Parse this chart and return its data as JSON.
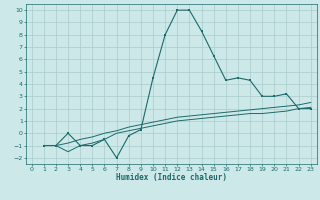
{
  "xlabel": "Humidex (Indice chaleur)",
  "xlim": [
    -0.5,
    23.5
  ],
  "ylim": [
    -2.5,
    10.5
  ],
  "bg_color": "#cce8e8",
  "grid_color": "#aacccc",
  "line_color": "#1a6b6b",
  "curve1_x": [
    1,
    2,
    3,
    4,
    5,
    6,
    7,
    8,
    9,
    10,
    11,
    12,
    13,
    14,
    15,
    16,
    17,
    18,
    19,
    20,
    21,
    22,
    23
  ],
  "curve1_y": [
    -1,
    -1,
    0,
    -1,
    -1,
    -0.5,
    -2,
    -0.2,
    0.3,
    4.5,
    8.0,
    10.0,
    10.0,
    8.3,
    6.3,
    4.3,
    4.5,
    4.3,
    3.0,
    3.0,
    3.2,
    2.0,
    2.0
  ],
  "curve2_x": [
    1,
    2,
    3,
    4,
    5,
    6,
    7,
    8,
    9,
    10,
    11,
    12,
    13,
    14,
    15,
    16,
    17,
    18,
    19,
    20,
    21,
    22,
    23
  ],
  "curve2_y": [
    -1,
    -1,
    -1.5,
    -1.0,
    -0.8,
    -0.5,
    0.0,
    0.2,
    0.4,
    0.6,
    0.8,
    1.0,
    1.1,
    1.2,
    1.3,
    1.4,
    1.5,
    1.6,
    1.6,
    1.7,
    1.8,
    2.0,
    2.1
  ],
  "curve3_x": [
    1,
    2,
    3,
    4,
    5,
    6,
    7,
    8,
    9,
    10,
    11,
    12,
    13,
    14,
    15,
    16,
    17,
    18,
    19,
    20,
    21,
    22,
    23
  ],
  "curve3_y": [
    -1,
    -1,
    -0.8,
    -0.5,
    -0.3,
    0.0,
    0.2,
    0.5,
    0.7,
    0.9,
    1.1,
    1.3,
    1.4,
    1.5,
    1.6,
    1.7,
    1.8,
    1.9,
    2.0,
    2.1,
    2.2,
    2.3,
    2.5
  ]
}
